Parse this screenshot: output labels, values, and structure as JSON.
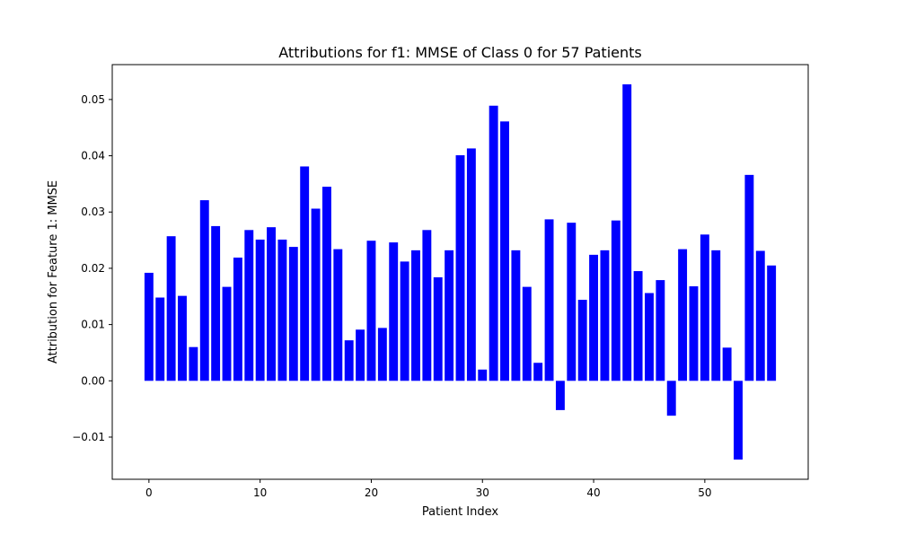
{
  "chart_data": {
    "type": "bar",
    "title": "Attributions for f1: MMSE of Class 0 for 57 Patients",
    "xlabel": "Patient Index",
    "ylabel": "Attribution for Feature 1: MMSE",
    "xlim": [
      -3.3,
      59.3
    ],
    "ylim": [
      -0.0175,
      0.0562
    ],
    "x_ticks": [
      0,
      10,
      20,
      30,
      40,
      50
    ],
    "y_ticks": [
      -0.01,
      0.0,
      0.01,
      0.02,
      0.03,
      0.04,
      0.05
    ],
    "x_tick_labels": [
      "0",
      "10",
      "20",
      "30",
      "40",
      "50"
    ],
    "y_tick_labels": [
      "−0.01",
      "0.00",
      "0.01",
      "0.02",
      "0.03",
      "0.04",
      "0.05"
    ],
    "bar_color": "#0000ff",
    "grid": false,
    "x": [
      0,
      1,
      2,
      3,
      4,
      5,
      6,
      7,
      8,
      9,
      10,
      11,
      12,
      13,
      14,
      15,
      16,
      17,
      18,
      19,
      20,
      21,
      22,
      23,
      24,
      25,
      26,
      27,
      28,
      29,
      30,
      31,
      32,
      33,
      34,
      35,
      36,
      37,
      38,
      39,
      40,
      41,
      42,
      43,
      44,
      45,
      46,
      47,
      48,
      49,
      50,
      51,
      52,
      53,
      54,
      55,
      56
    ],
    "values": [
      0.0192,
      0.0148,
      0.0257,
      0.0151,
      0.006,
      0.0321,
      0.0275,
      0.0167,
      0.0219,
      0.0268,
      0.0251,
      0.0273,
      0.0251,
      0.0238,
      0.0381,
      0.0306,
      0.0345,
      0.0234,
      0.0072,
      0.0091,
      0.0249,
      0.0094,
      0.0246,
      0.0212,
      0.0232,
      0.0268,
      0.0184,
      0.0232,
      0.0401,
      0.0413,
      0.002,
      0.0489,
      0.0461,
      0.0232,
      0.0167,
      0.0032,
      0.0287,
      -0.0052,
      0.0281,
      0.0144,
      0.0224,
      0.0232,
      0.0285,
      0.0527,
      0.0195,
      0.0156,
      0.0179,
      -0.0062,
      0.0234,
      0.0168,
      0.026,
      0.0232,
      0.0059,
      -0.014,
      0.0366,
      0.0231,
      0.0205
    ]
  }
}
